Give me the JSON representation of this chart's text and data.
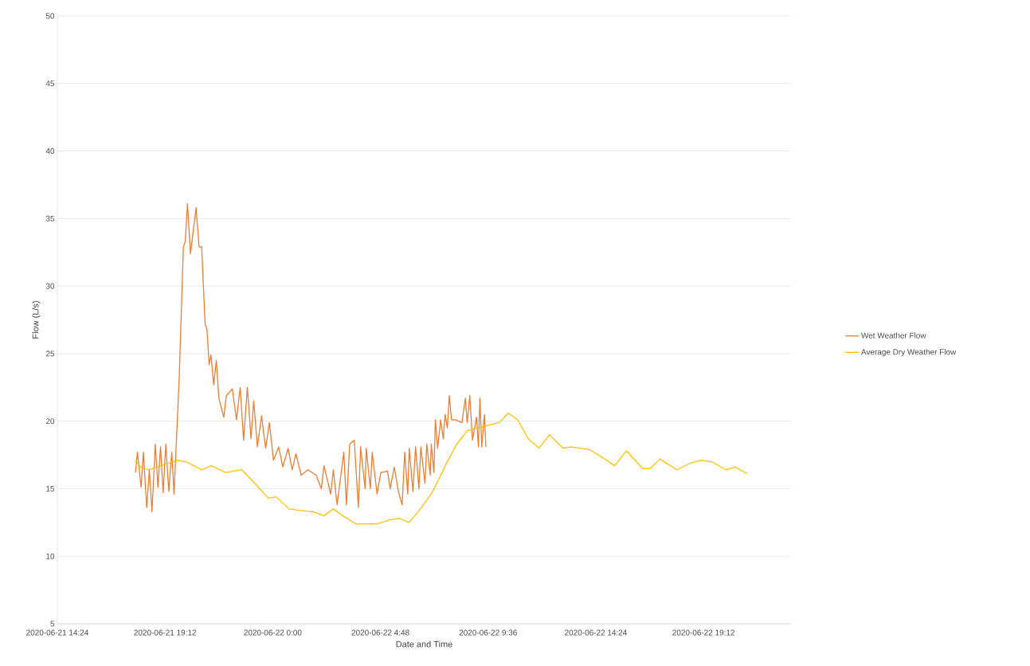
{
  "chart_data": {
    "type": "line",
    "xlabel": "Date and Time",
    "ylabel": "Flow (L/s)",
    "xlim": [
      "2020-06-21T14:24",
      "2020-06-22T23:06"
    ],
    "xticks": [
      {
        "value": "2020-06-21T14:24",
        "label": "2020-06-21 14:24"
      },
      {
        "value": "2020-06-21T19:12",
        "label": "2020-06-21 19:12"
      },
      {
        "value": "2020-06-22T00:00",
        "label": "2020-06-22 0:00"
      },
      {
        "value": "2020-06-22T04:48",
        "label": "2020-06-22 4:48"
      },
      {
        "value": "2020-06-22T09:36",
        "label": "2020-06-22 9:36"
      },
      {
        "value": "2020-06-22T14:24",
        "label": "2020-06-22 14:24"
      },
      {
        "value": "2020-06-22T19:12",
        "label": "2020-06-22 19:12"
      }
    ],
    "ylim": [
      5,
      50
    ],
    "yticks": [
      5,
      10,
      15,
      20,
      25,
      30,
      35,
      40,
      45,
      50
    ],
    "grid": "y",
    "legend": "right",
    "series": [
      {
        "name": "Wet Weather Flow",
        "color": "#ed7d31",
        "x": [
          "2020-06-21T17:53",
          "2020-06-21T17:58",
          "2020-06-21T18:08",
          "2020-06-21T18:14",
          "2020-06-21T18:23",
          "2020-06-21T18:30",
          "2020-06-21T18:37",
          "2020-06-21T18:46",
          "2020-06-21T18:53",
          "2020-06-21T19:00",
          "2020-06-21T19:07",
          "2020-06-21T19:14",
          "2020-06-21T19:22",
          "2020-06-21T19:30",
          "2020-06-21T19:36",
          "2020-06-21T19:50",
          "2020-06-21T20:01",
          "2020-06-21T20:06",
          "2020-06-21T20:12",
          "2020-06-21T20:20",
          "2020-06-21T20:35",
          "2020-06-21T20:43",
          "2020-06-21T20:50",
          "2020-06-21T20:59",
          "2020-06-21T21:04",
          "2020-06-21T21:10",
          "2020-06-21T21:15",
          "2020-06-21T21:22",
          "2020-06-21T21:29",
          "2020-06-21T21:36",
          "2020-06-21T21:49",
          "2020-06-21T21:56",
          "2020-06-21T22:03",
          "2020-06-21T22:12",
          "2020-06-21T22:23",
          "2020-06-21T22:33",
          "2020-06-21T22:42",
          "2020-06-21T22:52",
          "2020-06-21T23:02",
          "2020-06-21T23:09",
          "2020-06-21T23:19",
          "2020-06-21T23:30",
          "2020-06-21T23:41",
          "2020-06-21T23:51",
          "2020-06-22T00:02",
          "2020-06-22T00:16",
          "2020-06-22T00:27",
          "2020-06-22T00:41",
          "2020-06-22T00:52",
          "2020-06-22T01:02",
          "2020-06-22T01:16",
          "2020-06-22T01:34",
          "2020-06-22T01:56",
          "2020-06-22T02:10",
          "2020-06-22T02:17",
          "2020-06-22T02:35",
          "2020-06-22T02:42",
          "2020-06-22T02:52",
          "2020-06-22T03:10",
          "2020-06-22T03:17",
          "2020-06-22T03:26",
          "2020-06-22T03:38",
          "2020-06-22T03:49",
          "2020-06-22T03:55",
          "2020-06-22T04:07",
          "2020-06-22T04:10",
          "2020-06-22T04:21",
          "2020-06-22T04:26",
          "2020-06-22T04:39",
          "2020-06-22T04:49",
          "2020-06-22T05:07",
          "2020-06-22T05:14",
          "2020-06-22T05:25",
          "2020-06-22T05:36",
          "2020-06-22T05:46",
          "2020-06-22T05:53",
          "2020-06-22T06:01",
          "2020-06-22T06:05",
          "2020-06-22T06:15",
          "2020-06-22T06:22",
          "2020-06-22T06:31",
          "2020-06-22T06:36",
          "2020-06-22T06:47",
          "2020-06-22T06:52",
          "2020-06-22T07:01",
          "2020-06-22T07:04",
          "2020-06-22T07:11",
          "2020-06-22T07:15",
          "2020-06-22T07:21",
          "2020-06-22T07:29",
          "2020-06-22T07:36",
          "2020-06-22T07:41",
          "2020-06-22T07:47",
          "2020-06-22T07:52",
          "2020-06-22T07:58",
          "2020-06-22T08:08",
          "2020-06-22T08:26",
          "2020-06-22T08:35",
          "2020-06-22T08:40",
          "2020-06-22T08:47",
          "2020-06-22T08:54",
          "2020-06-22T09:05",
          "2020-06-22T09:10",
          "2020-06-22T09:14",
          "2020-06-22T09:19",
          "2020-06-22T09:26",
          "2020-06-22T09:30"
        ],
        "values": [
          16.2,
          17.7,
          15.1,
          17.7,
          13.6,
          16.4,
          13.3,
          18.3,
          15.1,
          18.1,
          14.7,
          18.3,
          14.8,
          17.7,
          14.6,
          23.3,
          32.9,
          33.3,
          36.1,
          32.4,
          35.8,
          32.9,
          32.9,
          27.2,
          26.8,
          24.2,
          24.9,
          22.7,
          24.5,
          21.7,
          20.3,
          21.9,
          22.1,
          22.4,
          20.1,
          22.5,
          18.6,
          22.5,
          18.7,
          21.5,
          18.1,
          20.4,
          18.0,
          19.9,
          17.1,
          18.1,
          16.6,
          18.0,
          16.4,
          17.6,
          16.0,
          16.4,
          16.0,
          15.0,
          16.7,
          14.6,
          16.4,
          13.8,
          17.7,
          13.8,
          18.3,
          18.6,
          13.6,
          18.1,
          15.0,
          18.0,
          15.0,
          17.7,
          14.6,
          16.2,
          16.3,
          15.0,
          16.6,
          14.8,
          13.8,
          17.7,
          14.6,
          18.0,
          14.8,
          18.1,
          15.0,
          18.1,
          15.4,
          18.3,
          16.0,
          18.3,
          16.2,
          20.1,
          18.0,
          20.1,
          18.7,
          20.5,
          19.5,
          21.9,
          20.1,
          20.1,
          19.9,
          21.7,
          19.9,
          21.9,
          18.6,
          20.3,
          18.1,
          21.7,
          18.1,
          20.5,
          18.1
        ]
      },
      {
        "name": "Average Dry Weather Flow",
        "color": "#ffc000",
        "x": [
          "2020-06-21T17:53",
          "2020-06-21T18:07",
          "2020-06-21T18:28",
          "2020-06-21T18:50",
          "2020-06-21T19:11",
          "2020-06-21T19:46",
          "2020-06-21T20:08",
          "2020-06-21T20:29",
          "2020-06-21T20:50",
          "2020-06-21T21:15",
          "2020-06-21T21:54",
          "2020-06-21T22:37",
          "2020-06-21T23:05",
          "2020-06-21T23:48",
          "2020-06-22T00:09",
          "2020-06-22T00:44",
          "2020-06-22T01:41",
          "2020-06-22T01:48",
          "2020-06-22T02:17",
          "2020-06-22T02:42",
          "2020-06-22T03:07",
          "2020-06-22T03:42",
          "2020-06-22T04:39",
          "2020-06-22T05:14",
          "2020-06-22T05:39",
          "2020-06-22T06:04",
          "2020-06-22T06:32",
          "2020-06-22T07:08",
          "2020-06-22T07:43",
          "2020-06-22T08:12",
          "2020-06-22T08:40",
          "2020-06-22T09:23",
          "2020-06-22T09:51",
          "2020-06-22T10:06",
          "2020-06-22T10:30",
          "2020-06-22T10:55",
          "2020-06-22T11:23",
          "2020-06-22T11:52",
          "2020-06-22T12:20",
          "2020-06-22T12:56",
          "2020-06-22T13:17",
          "2020-06-22T14:07",
          "2020-06-22T14:42",
          "2020-06-22T15:14",
          "2020-06-22T15:46",
          "2020-06-22T16:29",
          "2020-06-22T16:50",
          "2020-06-22T17:15",
          "2020-06-22T18:01",
          "2020-06-22T18:37",
          "2020-06-22T19:05",
          "2020-06-22T19:33",
          "2020-06-22T20:13",
          "2020-06-22T20:37",
          "2020-06-22T21:09"
        ],
        "values": [
          17.1,
          16.6,
          16.4,
          16.6,
          16.8,
          17.1,
          17.0,
          16.7,
          16.4,
          16.7,
          16.2,
          16.4,
          15.6,
          14.3,
          14.4,
          13.5,
          13.3,
          13.3,
          13.0,
          13.5,
          13.0,
          12.4,
          12.4,
          12.7,
          12.8,
          12.5,
          13.4,
          14.8,
          16.8,
          18.3,
          19.3,
          19.6,
          19.8,
          19.9,
          20.6,
          20.1,
          18.7,
          18.0,
          19.0,
          18.0,
          18.1,
          17.9,
          17.3,
          16.7,
          17.8,
          16.5,
          16.5,
          17.2,
          16.4,
          16.9,
          17.1,
          17.0,
          16.4,
          16.6,
          16.1
        ]
      }
    ]
  }
}
